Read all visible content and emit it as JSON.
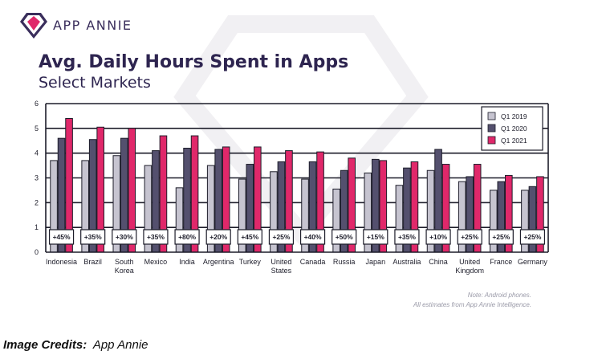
{
  "brand": {
    "name": "APP ANNIE",
    "logo_icon": "diamond-logo-icon"
  },
  "credits": {
    "label": "Image Credits:",
    "source": "App Annie"
  },
  "note": {
    "line1": "Note: Android phones.",
    "line2": "All estimates from App Annie Intelligence."
  },
  "colors": {
    "q1_2019": "#c6c4d0",
    "q1_2020": "#54506e",
    "q1_2021": "#e0286a",
    "axis": "#1d1d2a",
    "title": "#2e2550"
  },
  "chart_data": {
    "type": "bar",
    "title": "Avg. Daily Hours Spent in Apps",
    "subtitle": "Select Markets",
    "ylim": [
      0,
      6
    ],
    "yticks": [
      0,
      1,
      2,
      3,
      4,
      5,
      6
    ],
    "grid": true,
    "legend_position": "top-right",
    "categories": [
      [
        "Indonesia"
      ],
      [
        "Brazil"
      ],
      [
        "South",
        "Korea"
      ],
      [
        "Mexico"
      ],
      [
        "India"
      ],
      [
        "Argentina"
      ],
      [
        "Turkey"
      ],
      [
        "United",
        "States"
      ],
      [
        "Canada"
      ],
      [
        "Russia"
      ],
      [
        "Japan"
      ],
      [
        "Australia"
      ],
      [
        "China"
      ],
      [
        "United",
        "Kingdom"
      ],
      [
        "France"
      ],
      [
        "Germany"
      ]
    ],
    "series": [
      {
        "name": "Q1 2019",
        "values": [
          3.7,
          3.7,
          3.9,
          3.5,
          2.6,
          3.5,
          2.95,
          3.25,
          2.95,
          2.55,
          3.2,
          2.7,
          3.3,
          2.85,
          2.5,
          2.5
        ]
      },
      {
        "name": "Q1 2020",
        "values": [
          4.6,
          4.55,
          4.6,
          4.1,
          4.2,
          4.15,
          3.55,
          3.65,
          3.65,
          3.3,
          3.75,
          3.4,
          4.15,
          3.05,
          2.85,
          2.65
        ]
      },
      {
        "name": "Q1 2021",
        "values": [
          5.4,
          5.05,
          5.0,
          4.7,
          4.7,
          4.25,
          4.25,
          4.1,
          4.05,
          3.8,
          3.7,
          3.65,
          3.55,
          3.55,
          3.1,
          3.05
        ]
      }
    ],
    "growth_labels": [
      "+45%",
      "+35%",
      "+30%",
      "+35%",
      "+80%",
      "+20%",
      "+45%",
      "+25%",
      "+40%",
      "+50%",
      "+15%",
      "+35%",
      "+10%",
      "+25%",
      "+25%",
      "+25%"
    ]
  }
}
